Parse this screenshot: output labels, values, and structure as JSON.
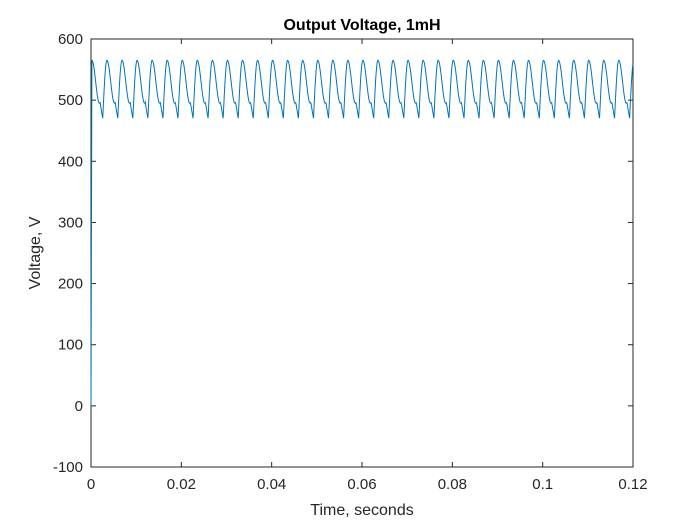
{
  "chart_data": {
    "type": "line",
    "title": "Output Voltage, 1mH",
    "xlabel": "Time, seconds",
    "ylabel": "Voltage, V",
    "xlim": [
      0,
      0.12
    ],
    "ylim": [
      -100,
      600
    ],
    "xticks": [
      0,
      0.02,
      0.04,
      0.06,
      0.08,
      0.1,
      0.12
    ],
    "xtick_labels": [
      "0",
      "0.02",
      "0.04",
      "0.06",
      "0.08",
      "0.1",
      "0.12"
    ],
    "yticks": [
      -100,
      0,
      100,
      200,
      300,
      400,
      500,
      600
    ],
    "ytick_labels": [
      "-100",
      "0",
      "100",
      "200",
      "300",
      "400",
      "500",
      "600"
    ],
    "grid": false,
    "legend": false,
    "series": [
      {
        "color": "#0072BD",
        "description": "rectified output voltage ripple",
        "startup": [
          {
            "x": 0,
            "y": 0
          },
          {
            "x": 0.0002,
            "y": 565
          }
        ],
        "ripple": {
          "period_s": 0.003333,
          "max_v": 565,
          "min_v": 470,
          "plateau_v": 495,
          "t_start_s": 0.0002,
          "t_end_s": 0.12
        }
      }
    ]
  }
}
